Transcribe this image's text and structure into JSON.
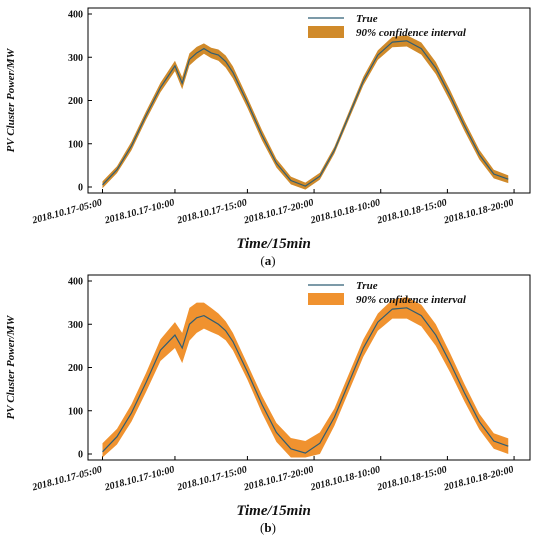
{
  "chart_data": [
    {
      "type": "line",
      "panel_label": "a",
      "xlabel": "Time/15min",
      "ylabel": "PV Cluster Power/MW",
      "ylim": [
        0,
        400
      ],
      "yticks": [
        0,
        100,
        200,
        300,
        400
      ],
      "xticks": [
        "2018.10.17-05:00",
        "2018.10.17-10:00",
        "2018.10.17-15:00",
        "2018.10.17-20:00",
        "2018.10.18-10:00",
        "2018.10.18-15:00",
        "2018.10.18-20:00"
      ],
      "legend": [
        "True",
        "90% confidence interval"
      ],
      "legend_position": "top-right",
      "colors": {
        "line": "#2f5d73",
        "band": "#d08a2a"
      },
      "band_halfwidth": [
        8,
        8,
        10,
        10,
        11,
        12,
        14,
        14,
        14,
        12,
        12,
        13,
        14,
        14,
        12,
        12,
        10,
        9,
        8,
        8,
        8,
        9,
        10,
        11,
        12,
        13,
        14,
        14,
        13,
        12,
        11,
        10,
        9
      ],
      "series": [
        {
          "name": "True",
          "x": [
            0,
            1,
            2,
            3,
            4,
            5,
            5.5,
            6,
            6.5,
            7,
            7.5,
            8,
            8.5,
            9,
            10,
            11,
            12,
            13,
            14,
            15,
            16,
            17,
            18,
            19,
            20,
            21,
            22,
            23,
            24,
            25,
            26,
            27,
            28
          ],
          "values": [
            5,
            40,
            95,
            165,
            230,
            280,
            240,
            295,
            310,
            320,
            310,
            305,
            290,
            265,
            195,
            120,
            55,
            15,
            2,
            25,
            85,
            165,
            245,
            305,
            335,
            338,
            320,
            275,
            210,
            140,
            75,
            30,
            18
          ]
        }
      ]
    },
    {
      "type": "line",
      "panel_label": "b",
      "xlabel": "Time/15min",
      "ylabel": "PV Cluster Power/MW",
      "ylim": [
        0,
        400
      ],
      "yticks": [
        0,
        100,
        200,
        300,
        400
      ],
      "xticks": [
        "2018.10.17-05:00",
        "2018.10.17-10:00",
        "2018.10.17-15:00",
        "2018.10.17-20:00",
        "2018.10.18-10:00",
        "2018.10.18-15:00",
        "2018.10.18-20:00"
      ],
      "legend": [
        "True",
        "90% confidence interval"
      ],
      "legend_position": "top-right",
      "colors": {
        "line": "#2f5d73",
        "band": "#f0922f"
      },
      "band_halfwidth": [
        20,
        18,
        20,
        22,
        25,
        30,
        35,
        38,
        35,
        30,
        28,
        25,
        22,
        20,
        18,
        20,
        22,
        25,
        28,
        25,
        20,
        20,
        20,
        20,
        22,
        25,
        25,
        25,
        22,
        20,
        18,
        18,
        18
      ],
      "series": [
        {
          "name": "True",
          "x": [
            0,
            1,
            2,
            3,
            4,
            5,
            5.5,
            6,
            6.5,
            7,
            7.5,
            8,
            8.5,
            9,
            10,
            11,
            12,
            13,
            14,
            15,
            16,
            17,
            18,
            19,
            20,
            21,
            22,
            23,
            24,
            25,
            26,
            27,
            28
          ],
          "values": [
            5,
            40,
            95,
            165,
            240,
            275,
            245,
            300,
            315,
            320,
            310,
            300,
            285,
            260,
            190,
            115,
            50,
            12,
            2,
            25,
            85,
            165,
            245,
            305,
            335,
            338,
            320,
            275,
            210,
            140,
            75,
            30,
            18
          ]
        }
      ]
    }
  ]
}
